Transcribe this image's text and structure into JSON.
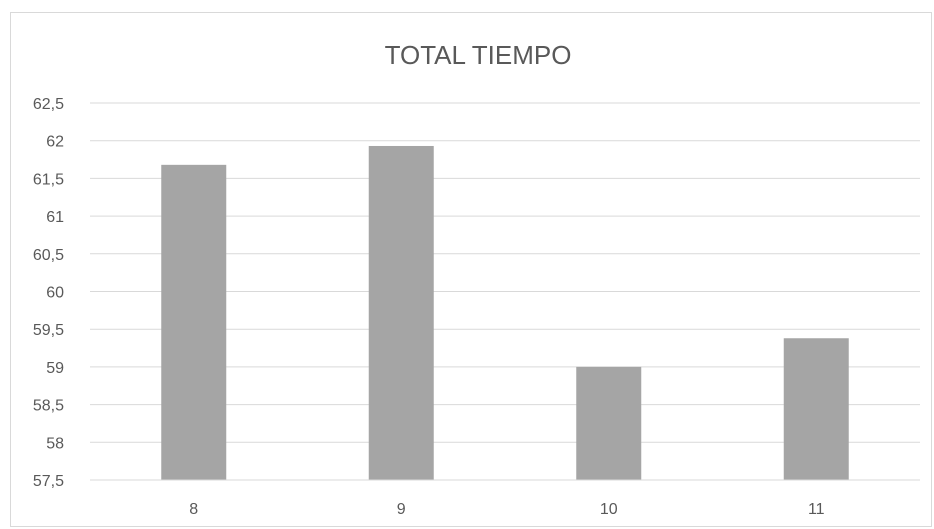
{
  "chart_data": {
    "type": "bar",
    "title": "TOTAL TIEMPO",
    "xlabel": "",
    "ylabel": "",
    "categories": [
      "8",
      "9",
      "10",
      "11"
    ],
    "values": [
      61.68,
      61.93,
      59.0,
      59.38
    ],
    "ylim": [
      57.5,
      62.5
    ],
    "y_ticks": [
      "57,5",
      "58",
      "58,5",
      "59",
      "59,5",
      "60",
      "60,5",
      "61",
      "61,5",
      "62",
      "62,5"
    ],
    "y_tick_values": [
      57.5,
      58,
      58.5,
      59,
      59.5,
      60,
      60.5,
      61,
      61.5,
      62,
      62.5
    ],
    "grid": true,
    "bar_color": "#a5a5a5",
    "grid_color": "#d9d9d9",
    "text_color": "#595959"
  }
}
